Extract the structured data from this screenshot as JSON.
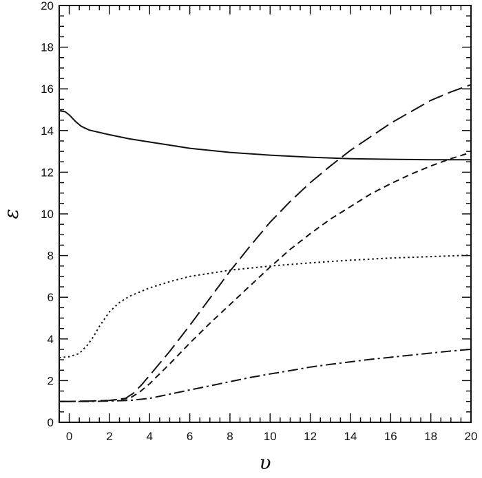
{
  "chart_data": {
    "type": "line",
    "title": "",
    "xlabel": "υ",
    "ylabel": "ε",
    "xlim": [
      -0.5,
      20
    ],
    "ylim": [
      0,
      20
    ],
    "xticks": [
      0,
      2,
      4,
      6,
      8,
      10,
      12,
      14,
      16,
      18,
      20
    ],
    "yticks": [
      0,
      2,
      4,
      6,
      8,
      10,
      12,
      14,
      16,
      18,
      20
    ],
    "grid": false,
    "legend": "none",
    "series": [
      {
        "style": "solid",
        "x": [
          -0.5,
          -0.2,
          0,
          0.3,
          0.6,
          1,
          2,
          3,
          4,
          5,
          6,
          8,
          10,
          12,
          14,
          16,
          18,
          20
        ],
        "y": [
          14.95,
          14.9,
          14.75,
          14.45,
          14.2,
          14.02,
          13.8,
          13.6,
          13.45,
          13.3,
          13.15,
          12.95,
          12.82,
          12.72,
          12.65,
          12.62,
          12.6,
          12.6
        ]
      },
      {
        "style": "dotted",
        "x": [
          -0.5,
          0,
          0.5,
          0.9,
          1.2,
          1.5,
          2,
          2.5,
          3,
          4,
          5,
          6,
          8,
          10,
          12,
          14,
          16,
          18,
          20
        ],
        "y": [
          3.1,
          3.15,
          3.3,
          3.7,
          4.1,
          4.6,
          5.3,
          5.75,
          6.05,
          6.45,
          6.75,
          7.0,
          7.3,
          7.5,
          7.65,
          7.78,
          7.88,
          7.95,
          8.02
        ]
      },
      {
        "style": "long-dash",
        "x": [
          -0.5,
          0,
          1,
          2,
          2.8,
          3.2,
          3.6,
          4,
          5,
          6,
          7,
          8,
          9,
          10,
          11,
          12,
          13,
          14,
          15,
          16,
          17,
          18,
          19,
          20
        ],
        "y": [
          1.0,
          1.0,
          1.02,
          1.05,
          1.15,
          1.4,
          1.8,
          2.25,
          3.4,
          4.65,
          5.95,
          7.25,
          8.45,
          9.6,
          10.6,
          11.5,
          12.3,
          13.05,
          13.7,
          14.35,
          14.9,
          15.45,
          15.85,
          16.2
        ]
      },
      {
        "style": "short-dash",
        "x": [
          -0.5,
          0,
          1,
          2,
          3,
          3.5,
          4,
          5,
          6,
          7,
          8,
          9,
          10,
          11,
          12,
          13,
          14,
          15,
          16,
          17,
          18,
          19,
          20
        ],
        "y": [
          1.0,
          1.0,
          1.02,
          1.05,
          1.15,
          1.45,
          1.85,
          2.8,
          3.8,
          4.75,
          5.65,
          6.55,
          7.45,
          8.3,
          9.05,
          9.75,
          10.35,
          10.95,
          11.45,
          11.9,
          12.3,
          12.65,
          12.95
        ]
      },
      {
        "style": "dash-dot",
        "x": [
          -0.5,
          0,
          1,
          2,
          3,
          4,
          5,
          6,
          7,
          8,
          9,
          10,
          11,
          12,
          13,
          14,
          15,
          16,
          17,
          18,
          19,
          20
        ],
        "y": [
          1.0,
          1.0,
          1.0,
          1.02,
          1.05,
          1.15,
          1.35,
          1.55,
          1.75,
          1.95,
          2.15,
          2.32,
          2.48,
          2.65,
          2.78,
          2.9,
          3.02,
          3.12,
          3.22,
          3.32,
          3.42,
          3.5
        ]
      }
    ]
  }
}
